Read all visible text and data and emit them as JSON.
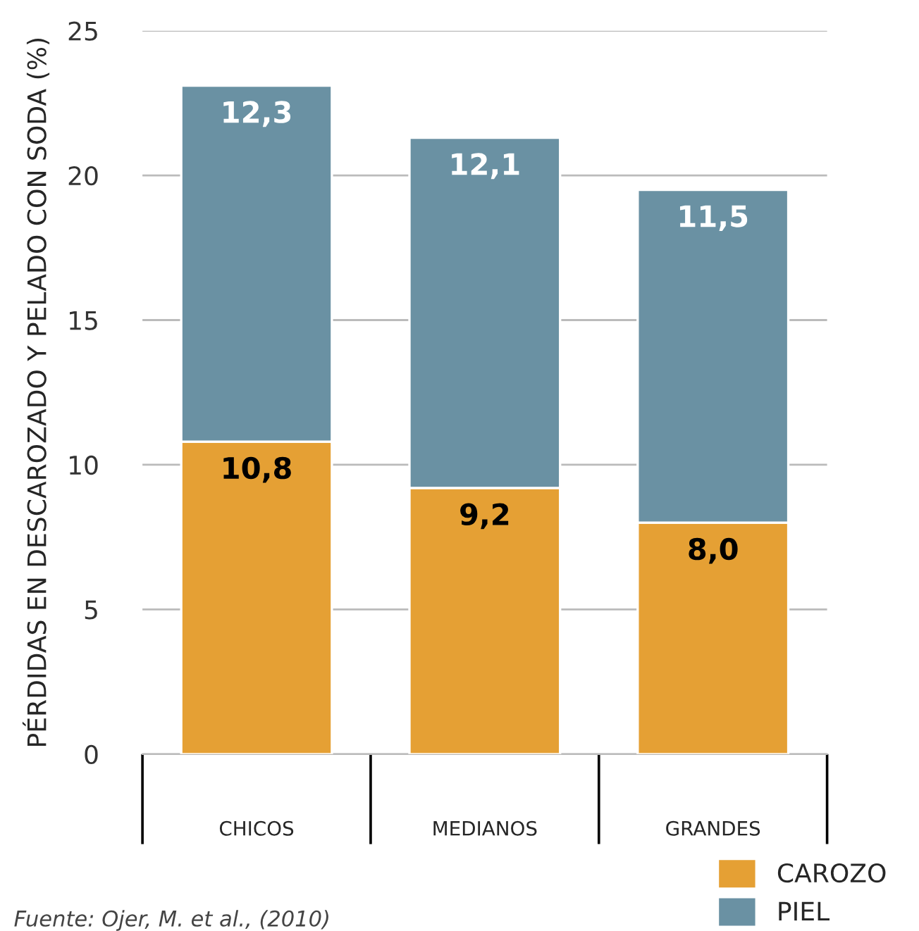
{
  "chart_data": {
    "type": "bar",
    "stacked": true,
    "ylabel": "PÉRDIDAS EN DESCAROZADO Y PELADO CON SODA (%)",
    "categories": [
      "CHICOS",
      "MEDIANOS",
      "GRANDES"
    ],
    "series": [
      {
        "name": "CAROZO",
        "color": "#e5a034",
        "values": [
          10.8,
          9.2,
          8.0
        ],
        "value_labels": [
          "10,8",
          "9,2",
          "8,0"
        ]
      },
      {
        "name": "PIEL",
        "color": "#6a91a3",
        "values": [
          12.3,
          12.1,
          11.5
        ],
        "value_labels": [
          "12,3",
          "12,1",
          "11,5"
        ]
      }
    ],
    "ylim": [
      0,
      25
    ],
    "yticks": [
      0,
      5,
      10,
      15,
      20,
      25
    ],
    "grid": "y",
    "legend": "bottom right",
    "annotations": [
      "Fuente: Ojer, M. et al., (2010)"
    ]
  }
}
